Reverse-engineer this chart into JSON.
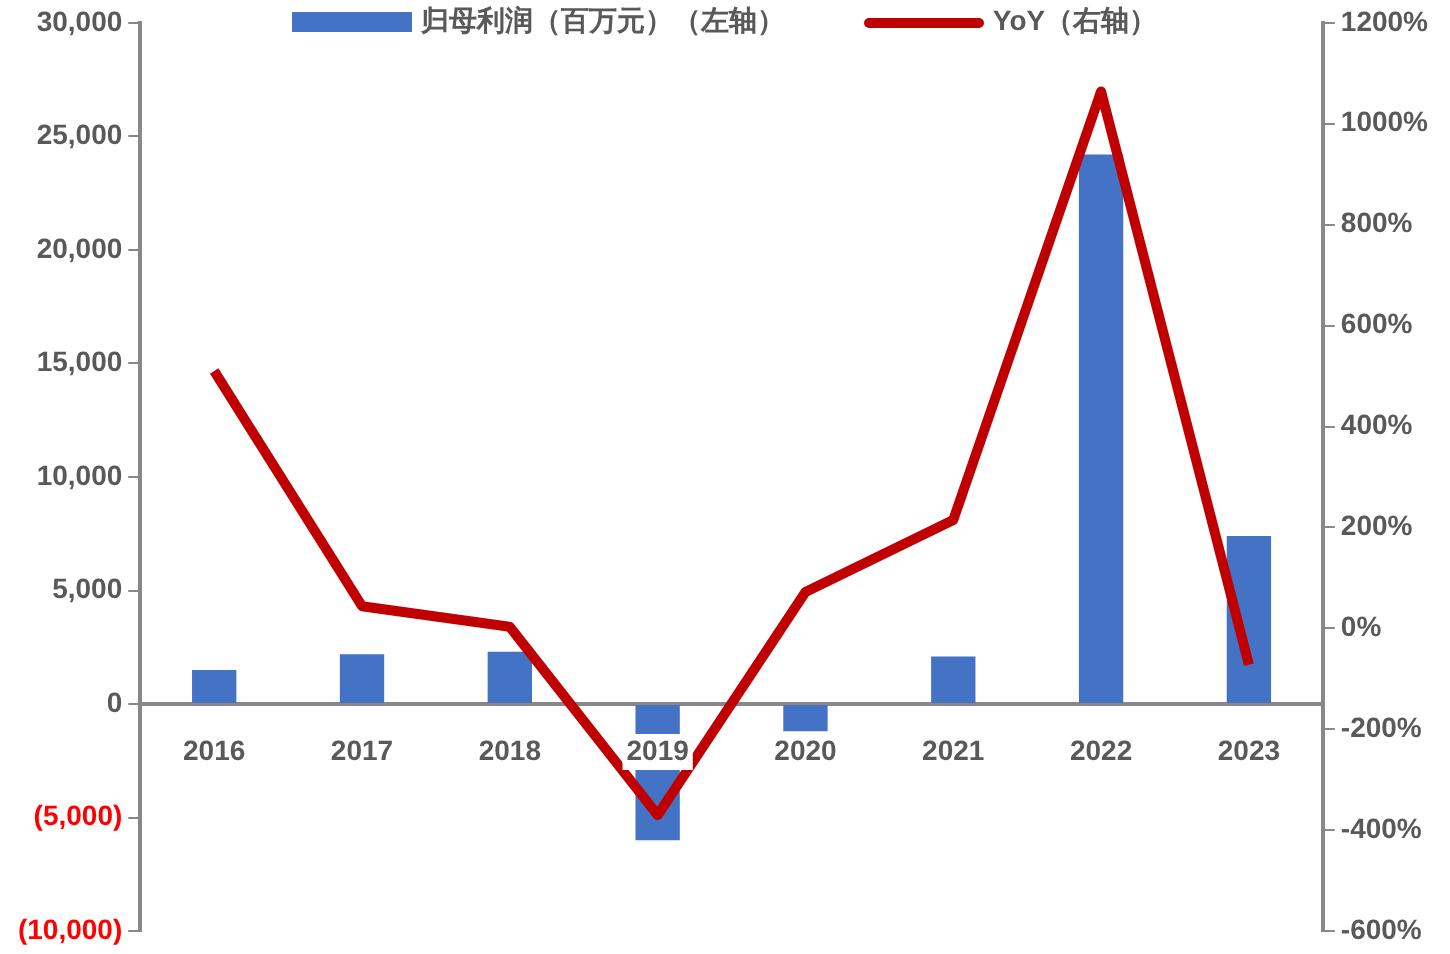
{
  "chart_data": {
    "type": "bar",
    "categories": [
      "2016",
      "2017",
      "2018",
      "2019",
      "2020",
      "2021",
      "2022",
      "2023"
    ],
    "series": [
      {
        "name": "归母利润（百万元）（左轴）",
        "color": "#4472c4",
        "values": [
          1500,
          2200,
          2300,
          -6000,
          -1200,
          2100,
          24200,
          7400
        ]
      },
      {
        "name": "YoY（右轴）",
        "type": "line",
        "axis": "y2",
        "color": "#c00000",
        "values": [
          510,
          44,
          3,
          -370,
          72,
          215,
          1064,
          -72
        ]
      }
    ],
    "ylim": [
      -10000,
      30000
    ],
    "yticks": [
      {
        "value": -10000,
        "label": "(10,000)"
      },
      {
        "value": -5000,
        "label": "(5,000)"
      },
      {
        "value": 0,
        "label": "0"
      },
      {
        "value": 5000,
        "label": "5,000"
      },
      {
        "value": 10000,
        "label": "10,000"
      },
      {
        "value": 15000,
        "label": "15,000"
      },
      {
        "value": 20000,
        "label": "20,000"
      },
      {
        "value": 25000,
        "label": "25,000"
      },
      {
        "value": 30000,
        "label": "30,000"
      }
    ],
    "y2lim": [
      -600,
      1200
    ],
    "y2ticks": [
      {
        "value": -600,
        "label": "-600%"
      },
      {
        "value": -400,
        "label": "-400%"
      },
      {
        "value": -200,
        "label": "-200%"
      },
      {
        "value": 0,
        "label": "0%"
      },
      {
        "value": 200,
        "label": "200%"
      },
      {
        "value": 400,
        "label": "400%"
      },
      {
        "value": 600,
        "label": "600%"
      },
      {
        "value": 800,
        "label": "800%"
      },
      {
        "value": 1000,
        "label": "1000%"
      },
      {
        "value": 1200,
        "label": "1200%"
      }
    ],
    "grid": false,
    "legend": "top",
    "marker": "none"
  }
}
